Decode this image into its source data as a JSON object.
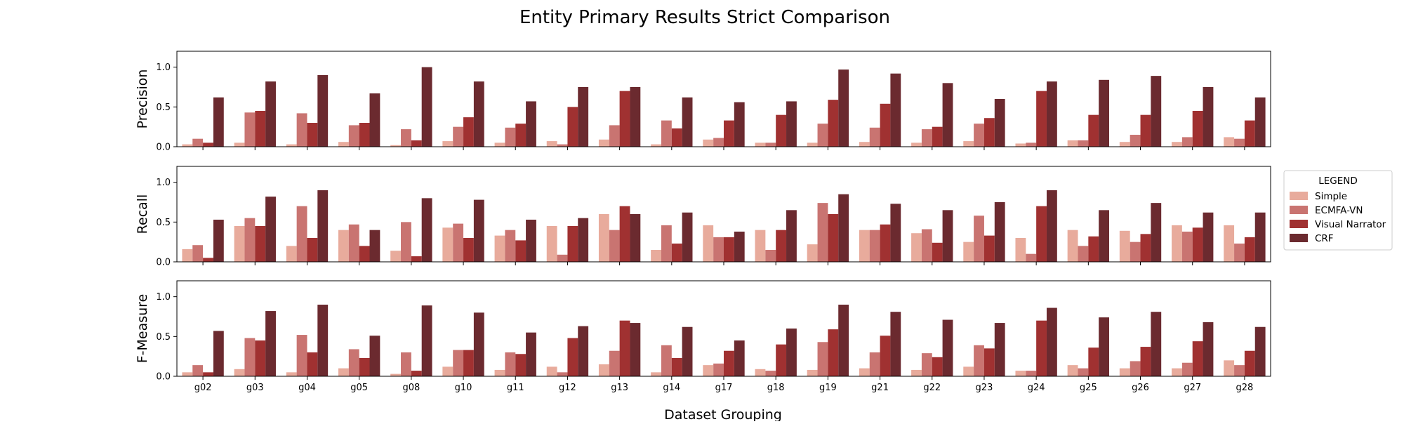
{
  "figure": {
    "title": "Entity Primary Results Strict Comparison",
    "xlabel": "Dataset Grouping"
  },
  "legend": {
    "title": "LEGEND",
    "placement": "right",
    "entries": [
      "Simple",
      "ECMFA-VN",
      "Visual Narrator",
      "CRF"
    ]
  },
  "colors": {
    "Simple": "#e8ab9c",
    "ECMFA-VN": "#c97471",
    "Visual Narrator": "#a03131",
    "CRF": "#6b2a2f"
  },
  "chart_data": [
    {
      "type": "bar",
      "ylabel": "Precision",
      "ylim": [
        0,
        1.2
      ],
      "yticks": [
        "0.0",
        "0.5",
        "1.0"
      ],
      "categories": [
        "g02",
        "g03",
        "g04",
        "g05",
        "g08",
        "g10",
        "g11",
        "g12",
        "g13",
        "g14",
        "g17",
        "g18",
        "g19",
        "g21",
        "g22",
        "g23",
        "g24",
        "g25",
        "g26",
        "g27",
        "g28"
      ],
      "series": [
        {
          "name": "Simple",
          "values": [
            0.03,
            0.05,
            0.03,
            0.06,
            0.02,
            0.07,
            0.05,
            0.07,
            0.09,
            0.03,
            0.09,
            0.05,
            0.05,
            0.06,
            0.05,
            0.07,
            0.04,
            0.08,
            0.06,
            0.06,
            0.12
          ]
        },
        {
          "name": "ECMFA-VN",
          "values": [
            0.1,
            0.43,
            0.42,
            0.27,
            0.22,
            0.25,
            0.24,
            0.03,
            0.27,
            0.33,
            0.11,
            0.05,
            0.29,
            0.24,
            0.22,
            0.29,
            0.05,
            0.08,
            0.15,
            0.12,
            0.1
          ]
        },
        {
          "name": "Visual Narrator",
          "values": [
            0.05,
            0.45,
            0.3,
            0.3,
            0.08,
            0.37,
            0.29,
            0.5,
            0.7,
            0.23,
            0.33,
            0.4,
            0.59,
            0.54,
            0.25,
            0.36,
            0.7,
            0.4,
            0.4,
            0.45,
            0.33
          ]
        },
        {
          "name": "CRF",
          "values": [
            0.62,
            0.82,
            0.9,
            0.67,
            1.0,
            0.82,
            0.57,
            0.75,
            0.75,
            0.62,
            0.56,
            0.57,
            0.97,
            0.92,
            0.8,
            0.6,
            0.82,
            0.84,
            0.89,
            0.75,
            0.62
          ]
        }
      ]
    },
    {
      "type": "bar",
      "ylabel": "Recall",
      "ylim": [
        0,
        1.2
      ],
      "yticks": [
        "0.0",
        "0.5",
        "1.0"
      ],
      "categories": [
        "g02",
        "g03",
        "g04",
        "g05",
        "g08",
        "g10",
        "g11",
        "g12",
        "g13",
        "g14",
        "g17",
        "g18",
        "g19",
        "g21",
        "g22",
        "g23",
        "g24",
        "g25",
        "g26",
        "g27",
        "g28"
      ],
      "series": [
        {
          "name": "Simple",
          "values": [
            0.16,
            0.45,
            0.2,
            0.4,
            0.14,
            0.43,
            0.33,
            0.45,
            0.6,
            0.15,
            0.46,
            0.4,
            0.22,
            0.4,
            0.36,
            0.25,
            0.3,
            0.4,
            0.39,
            0.46,
            0.46
          ]
        },
        {
          "name": "ECMFA-VN",
          "values": [
            0.21,
            0.55,
            0.7,
            0.47,
            0.5,
            0.48,
            0.4,
            0.09,
            0.4,
            0.46,
            0.31,
            0.15,
            0.74,
            0.4,
            0.41,
            0.58,
            0.1,
            0.2,
            0.25,
            0.38,
            0.23
          ]
        },
        {
          "name": "Visual Narrator",
          "values": [
            0.05,
            0.45,
            0.3,
            0.2,
            0.07,
            0.3,
            0.27,
            0.45,
            0.7,
            0.23,
            0.31,
            0.4,
            0.6,
            0.47,
            0.24,
            0.33,
            0.7,
            0.32,
            0.35,
            0.43,
            0.31
          ]
        },
        {
          "name": "CRF",
          "values": [
            0.53,
            0.82,
            0.9,
            0.4,
            0.8,
            0.78,
            0.53,
            0.55,
            0.6,
            0.62,
            0.38,
            0.65,
            0.85,
            0.73,
            0.65,
            0.75,
            0.9,
            0.65,
            0.74,
            0.62,
            0.62
          ]
        }
      ]
    },
    {
      "type": "bar",
      "ylabel": "F-Measure",
      "ylim": [
        0,
        1.2
      ],
      "yticks": [
        "0.0",
        "0.5",
        "1.0"
      ],
      "categories": [
        "g02",
        "g03",
        "g04",
        "g05",
        "g08",
        "g10",
        "g11",
        "g12",
        "g13",
        "g14",
        "g17",
        "g18",
        "g19",
        "g21",
        "g22",
        "g23",
        "g24",
        "g25",
        "g26",
        "g27",
        "g28"
      ],
      "series": [
        {
          "name": "Simple",
          "values": [
            0.05,
            0.09,
            0.05,
            0.1,
            0.03,
            0.12,
            0.08,
            0.12,
            0.15,
            0.05,
            0.14,
            0.09,
            0.08,
            0.1,
            0.08,
            0.12,
            0.07,
            0.14,
            0.1,
            0.1,
            0.2
          ]
        },
        {
          "name": "ECMFA-VN",
          "values": [
            0.14,
            0.48,
            0.52,
            0.34,
            0.3,
            0.33,
            0.3,
            0.05,
            0.32,
            0.39,
            0.16,
            0.07,
            0.43,
            0.3,
            0.29,
            0.39,
            0.07,
            0.1,
            0.19,
            0.17,
            0.14
          ]
        },
        {
          "name": "Visual Narrator",
          "values": [
            0.05,
            0.45,
            0.3,
            0.23,
            0.07,
            0.33,
            0.28,
            0.48,
            0.7,
            0.23,
            0.32,
            0.4,
            0.59,
            0.51,
            0.24,
            0.35,
            0.7,
            0.36,
            0.37,
            0.44,
            0.32
          ]
        },
        {
          "name": "CRF",
          "values": [
            0.57,
            0.82,
            0.9,
            0.51,
            0.89,
            0.8,
            0.55,
            0.63,
            0.67,
            0.62,
            0.45,
            0.6,
            0.9,
            0.81,
            0.71,
            0.67,
            0.86,
            0.74,
            0.81,
            0.68,
            0.62
          ]
        }
      ]
    }
  ]
}
